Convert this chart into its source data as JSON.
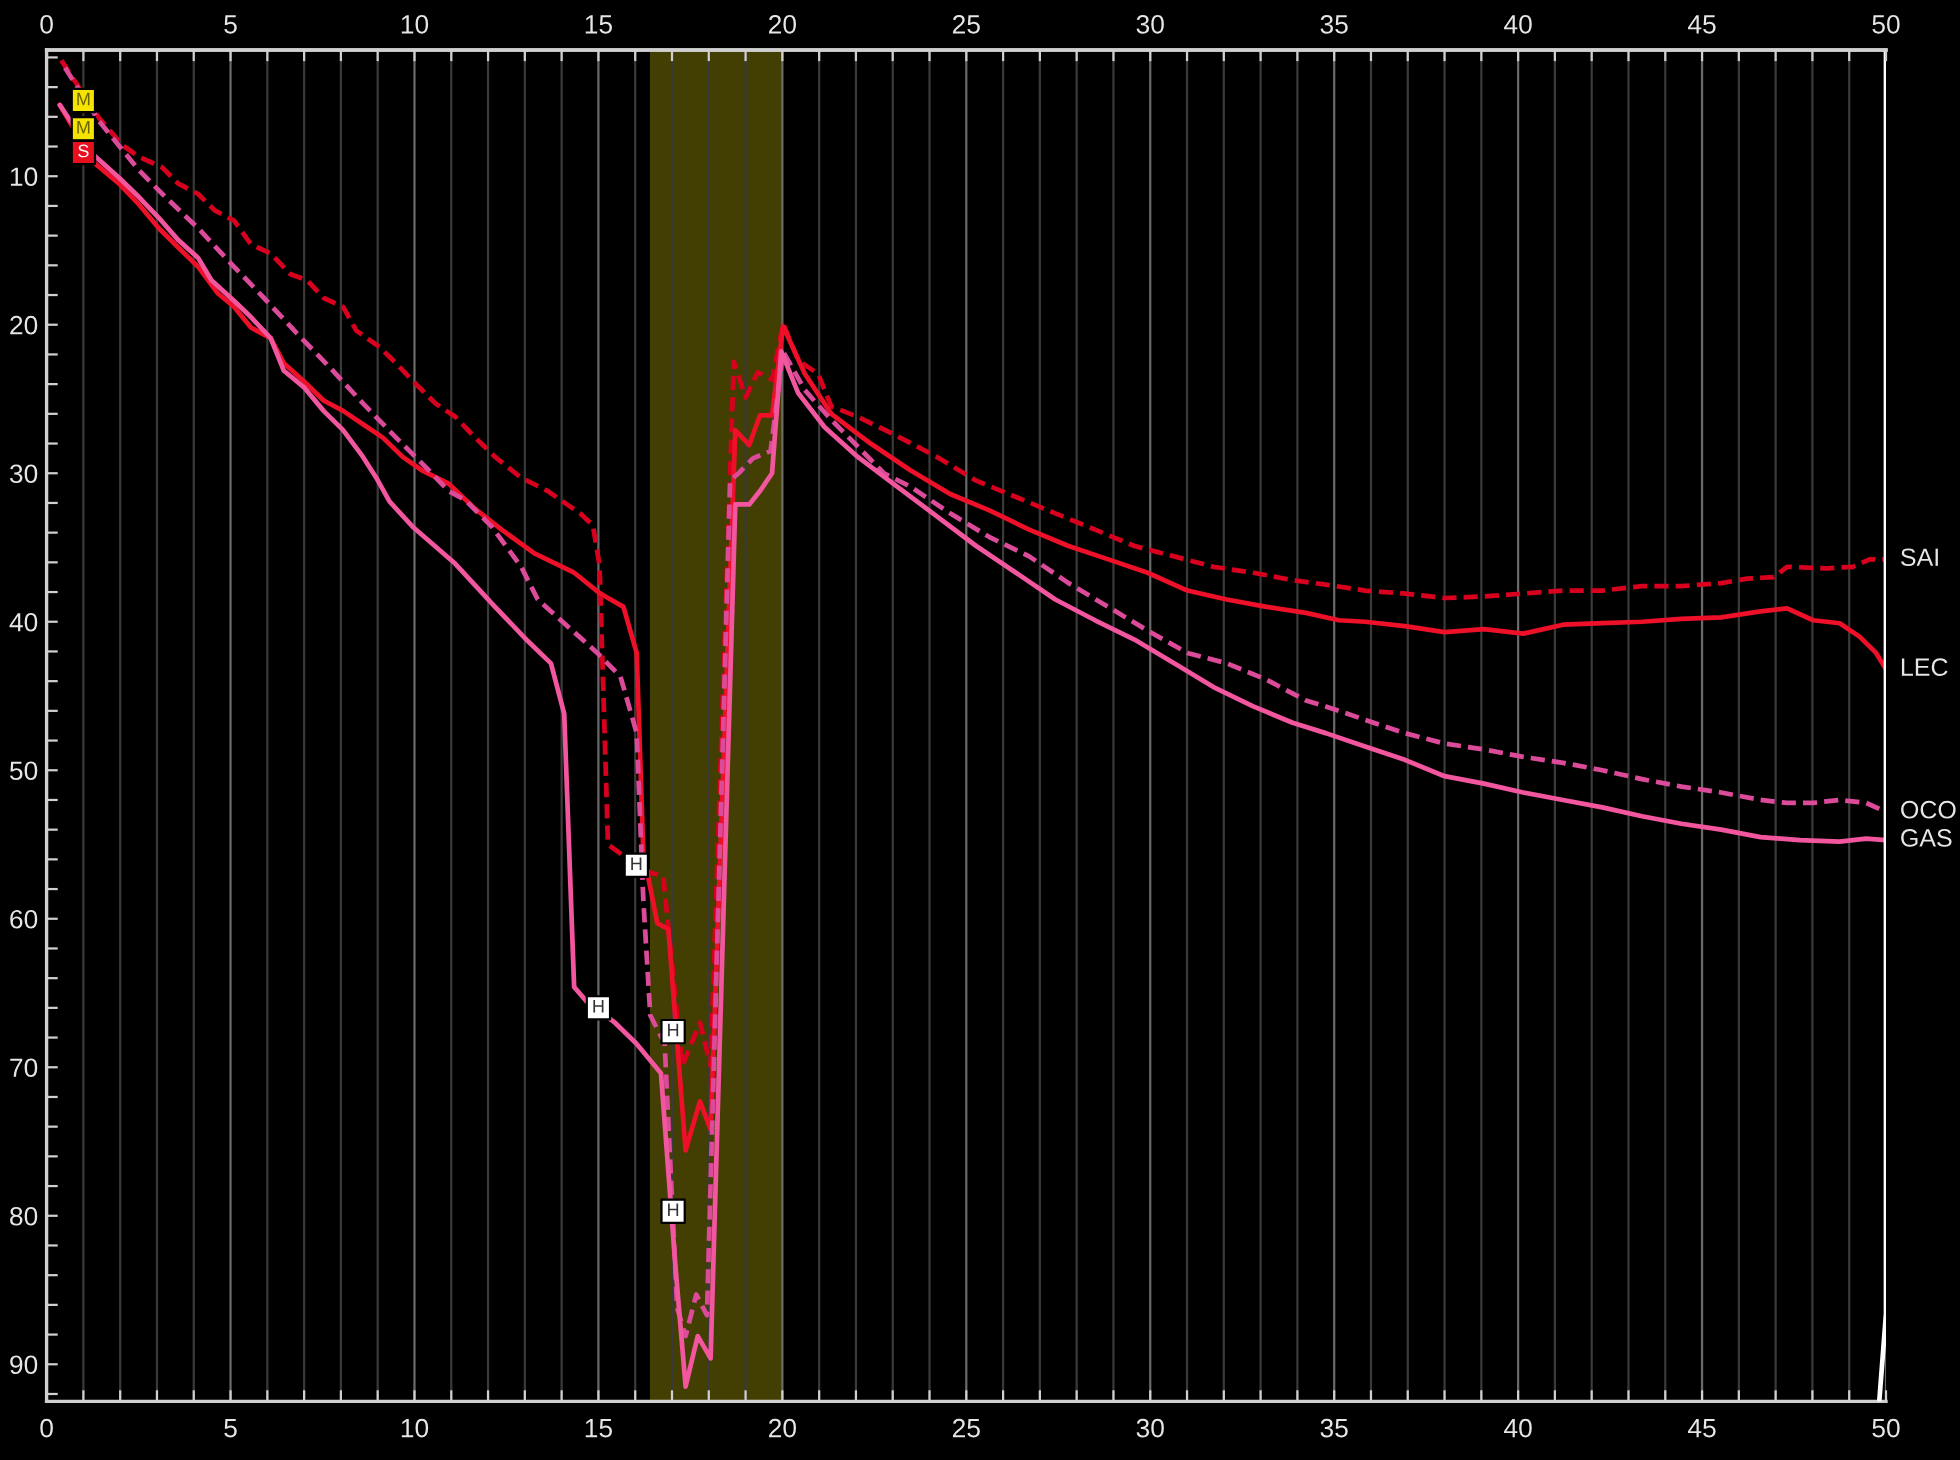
{
  "chart_data": {
    "type": "line",
    "xlim": [
      0,
      50
    ],
    "xticks": [
      0,
      {
        "value": 1,
        "label": null
      },
      {
        "value": 2,
        "label": null
      },
      {
        "value": 3,
        "label": null
      },
      {
        "value": 4,
        "label": null
      },
      5,
      {
        "value": 6,
        "label": null
      },
      {
        "value": 7,
        "label": null
      },
      {
        "value": 8,
        "label": null
      },
      {
        "value": 9,
        "label": null
      },
      10,
      {
        "value": 11,
        "label": null
      },
      {
        "value": 12,
        "label": null
      },
      {
        "value": 13,
        "label": null
      },
      {
        "value": 14,
        "label": null
      },
      15,
      {
        "value": 16,
        "label": null
      },
      {
        "value": 17,
        "label": null
      },
      {
        "value": 18,
        "label": null
      },
      {
        "value": 19,
        "label": null
      },
      20,
      {
        "value": 21,
        "label": null
      },
      {
        "value": 22,
        "label": null
      },
      {
        "value": 23,
        "label": null
      },
      {
        "value": 24,
        "label": null
      },
      25,
      {
        "value": 26,
        "label": null
      },
      {
        "value": 27,
        "label": null
      },
      {
        "value": 28,
        "label": null
      },
      {
        "value": 29,
        "label": null
      },
      30,
      {
        "value": 31,
        "label": null
      },
      {
        "value": 32,
        "label": null
      },
      {
        "value": 33,
        "label": null
      },
      {
        "value": 34,
        "label": null
      },
      35,
      {
        "value": 36,
        "label": null
      },
      {
        "value": 37,
        "label": null
      },
      {
        "value": 38,
        "label": null
      },
      {
        "value": 39,
        "label": null
      },
      40,
      {
        "value": 41,
        "label": null
      },
      {
        "value": 42,
        "label": null
      },
      {
        "value": 43,
        "label": null
      },
      {
        "value": 44,
        "label": null
      },
      45,
      {
        "value": 46,
        "label": null
      },
      {
        "value": 47,
        "label": null
      },
      {
        "value": 48,
        "label": null
      },
      {
        "value": 49,
        "label": null
      },
      50
    ],
    "x2lim": [
      0,
      50
    ],
    "x2ticks": [
      0,
      {
        "value": 1,
        "label": null
      },
      {
        "value": 2,
        "label": null
      },
      {
        "value": 3,
        "label": null
      },
      {
        "value": 4,
        "label": null
      },
      5,
      {
        "value": 6,
        "label": null
      },
      {
        "value": 7,
        "label": null
      },
      {
        "value": 8,
        "label": null
      },
      {
        "value": 9,
        "label": null
      },
      10,
      {
        "value": 11,
        "label": null
      },
      {
        "value": 12,
        "label": null
      },
      {
        "value": 13,
        "label": null
      },
      {
        "value": 14,
        "label": null
      },
      15,
      {
        "value": 16,
        "label": null
      },
      {
        "value": 17,
        "label": null
      },
      {
        "value": 18,
        "label": null
      },
      {
        "value": 19,
        "label": null
      },
      20,
      {
        "value": 21,
        "label": null
      },
      {
        "value": 22,
        "label": null
      },
      {
        "value": 23,
        "label": null
      },
      {
        "value": 24,
        "label": null
      },
      25,
      {
        "value": 26,
        "label": null
      },
      {
        "value": 27,
        "label": null
      },
      {
        "value": 28,
        "label": null
      },
      {
        "value": 29,
        "label": null
      },
      30,
      {
        "value": 31,
        "label": null
      },
      {
        "value": 32,
        "label": null
      },
      {
        "value": 33,
        "label": null
      },
      {
        "value": 34,
        "label": null
      },
      35,
      {
        "value": 36,
        "label": null
      },
      {
        "value": 37,
        "label": null
      },
      {
        "value": 38,
        "label": null
      },
      {
        "value": 39,
        "label": null
      },
      40,
      {
        "value": 41,
        "label": null
      },
      {
        "value": 42,
        "label": null
      },
      {
        "value": 43,
        "label": null
      },
      {
        "value": 44,
        "label": null
      },
      45,
      {
        "value": 46,
        "label": null
      },
      {
        "value": 47,
        "label": null
      },
      {
        "value": 48,
        "label": null
      },
      {
        "value": 49,
        "label": null
      },
      50
    ],
    "ylim": [
      92.5,
      1.5
    ],
    "yticks": [
      {
        "value": 2,
        "label": null
      },
      {
        "value": 4,
        "label": null
      },
      {
        "value": 6,
        "label": null
      },
      {
        "value": 8,
        "label": null
      },
      10,
      {
        "value": 12,
        "label": null
      },
      {
        "value": 14,
        "label": null
      },
      {
        "value": 16,
        "label": null
      },
      {
        "value": 18,
        "label": null
      },
      20,
      {
        "value": 22,
        "label": null
      },
      {
        "value": 24,
        "label": null
      },
      {
        "value": 26,
        "label": null
      },
      {
        "value": 28,
        "label": null
      },
      30,
      {
        "value": 32,
        "label": null
      },
      {
        "value": 34,
        "label": null
      },
      {
        "value": 36,
        "label": null
      },
      {
        "value": 38,
        "label": null
      },
      40,
      {
        "value": 42,
        "label": null
      },
      {
        "value": 44,
        "label": null
      },
      {
        "value": 46,
        "label": null
      },
      {
        "value": 48,
        "label": null
      },
      50,
      {
        "value": 52,
        "label": null
      },
      {
        "value": 54,
        "label": null
      },
      {
        "value": 56,
        "label": null
      },
      {
        "value": 58,
        "label": null
      },
      60,
      {
        "value": 62,
        "label": null
      },
      {
        "value": 64,
        "label": null
      },
      {
        "value": 66,
        "label": null
      },
      {
        "value": 68,
        "label": null
      },
      70,
      {
        "value": 72,
        "label": null
      },
      {
        "value": 74,
        "label": null
      },
      {
        "value": 76,
        "label": null
      },
      {
        "value": 78,
        "label": null
      },
      80,
      {
        "value": 82,
        "label": null
      },
      {
        "value": 84,
        "label": null
      },
      {
        "value": 86,
        "label": null
      },
      {
        "value": 88,
        "label": null
      },
      90,
      {
        "value": 92,
        "label": null
      }
    ],
    "grid": "x",
    "bands": [
      {
        "axis": "x",
        "from": 16.4,
        "to": 20.0,
        "color": "#433f02"
      }
    ],
    "series": [
      {
        "name": "SAI",
        "color": "#d8001e",
        "line_style": "dashed",
        "x": [
          0.4,
          1.43,
          2.06,
          2.51,
          3.14,
          3.58,
          4.12,
          4.57,
          5.1,
          5.56,
          6.09,
          6.63,
          7.08,
          7.53,
          8.06,
          8.42,
          9.05,
          9.5,
          10.04,
          10.57,
          11.11,
          11.65,
          12.19,
          12.9,
          13.62,
          14.5,
          14.85,
          15.03,
          15.26,
          15.65,
          16.41,
          16.76,
          17.28,
          17.76,
          18.05,
          18.68,
          19.0,
          19.33,
          19.72,
          20.02,
          20.43,
          20.97,
          21.33,
          22.05,
          23.12,
          24.2,
          25.27,
          26.35,
          27.42,
          28.5,
          29.57,
          30.65,
          31.72,
          32.8,
          33.87,
          34.77,
          35.84,
          36.92,
          38.0,
          39.07,
          40.14,
          41.22,
          42.29,
          43.37,
          44.44,
          45.52,
          46.23,
          46.95,
          47.31,
          48.38,
          49.1,
          49.55,
          50.0
        ],
        "values": [
          2.2,
          6.1,
          7.9,
          8.7,
          9.4,
          10.5,
          11.2,
          12.3,
          13.0,
          14.6,
          15.2,
          16.6,
          17.0,
          18.2,
          18.8,
          20.4,
          21.5,
          22.6,
          24.0,
          25.3,
          26.2,
          27.6,
          28.9,
          30.3,
          31.2,
          32.7,
          33.5,
          36.2,
          55.0,
          55.7,
          56.9,
          57.1,
          69.9,
          67.0,
          69.9,
          22.5,
          24.9,
          23.2,
          23.7,
          19.9,
          22.4,
          23.3,
          25.5,
          26.2,
          27.5,
          28.9,
          30.5,
          31.6,
          32.7,
          33.8,
          34.9,
          35.6,
          36.3,
          36.7,
          37.2,
          37.5,
          37.9,
          38.1,
          38.4,
          38.3,
          38.1,
          37.9,
          37.9,
          37.6,
          37.6,
          37.4,
          37.1,
          37.0,
          36.3,
          36.4,
          36.3,
          35.8,
          35.8
        ]
      },
      {
        "name": "LEC",
        "color": "#ee1028",
        "line_style": "solid",
        "x": [
          0.36,
          1.25,
          1.97,
          2.51,
          3.05,
          3.58,
          4.12,
          4.66,
          5.1,
          5.56,
          6.09,
          6.45,
          6.99,
          7.53,
          8.06,
          8.6,
          9.14,
          9.68,
          10.2,
          10.93,
          11.65,
          12.37,
          13.26,
          14.34,
          15.05,
          15.68,
          16.04,
          16.22,
          16.6,
          16.9,
          17.37,
          17.76,
          18.05,
          18.72,
          19.1,
          19.39,
          19.72,
          20.02,
          20.61,
          21.33,
          22.4,
          23.48,
          24.56,
          25.63,
          26.71,
          27.78,
          28.86,
          29.93,
          31.01,
          32.08,
          33.16,
          34.23,
          35.13,
          35.84,
          36.92,
          38.0,
          39.07,
          40.14,
          41.22,
          42.29,
          43.37,
          44.44,
          45.52,
          46.59,
          47.31,
          48.02,
          48.74,
          49.28,
          49.73,
          50.0
        ],
        "values": [
          5.2,
          9.0,
          10.5,
          11.9,
          13.5,
          14.8,
          16.1,
          17.9,
          18.8,
          20.2,
          20.9,
          22.6,
          23.8,
          25.1,
          25.8,
          26.7,
          27.6,
          28.9,
          29.8,
          30.7,
          32.4,
          33.8,
          35.4,
          36.7,
          38.1,
          39.0,
          42.1,
          55.5,
          60.3,
          60.7,
          75.6,
          72.3,
          74.2,
          27.1,
          28.1,
          26.1,
          26.1,
          20.1,
          23.3,
          26.0,
          28.0,
          29.8,
          31.4,
          32.5,
          33.8,
          34.9,
          35.8,
          36.7,
          37.9,
          38.5,
          39.0,
          39.4,
          39.9,
          40.0,
          40.3,
          40.7,
          40.5,
          40.8,
          40.2,
          40.1,
          40.0,
          39.8,
          39.7,
          39.3,
          39.1,
          39.9,
          40.1,
          41.0,
          42.1,
          43.2
        ]
      },
      {
        "name": "OCO",
        "color": "#dc4a9a",
        "line_style": "dashed",
        "x": [
          0.5,
          1.43,
          2.51,
          3.23,
          4.12,
          5.02,
          5.91,
          6.81,
          7.71,
          8.6,
          9.5,
          10.39,
          10.93,
          11.38,
          12.1,
          12.9,
          13.35,
          14.16,
          14.97,
          15.6,
          16.04,
          16.22,
          16.41,
          16.8,
          17.14,
          17.37,
          17.66,
          17.95,
          18.58,
          18.81,
          19.2,
          19.68,
          20.02,
          20.61,
          21.33,
          22.05,
          22.76,
          23.48,
          24.56,
          25.63,
          26.71,
          27.78,
          28.86,
          29.93,
          31.01,
          32.08,
          33.16,
          34.23,
          34.77,
          35.84,
          36.92,
          38.0,
          39.07,
          40.14,
          41.22,
          42.29,
          43.37,
          44.44,
          45.52,
          46.59,
          47.31,
          48.02,
          48.74,
          49.46,
          50.0
        ],
        "values": [
          2.7,
          6.3,
          9.6,
          11.4,
          13.5,
          15.9,
          18.2,
          20.6,
          22.9,
          25.3,
          27.6,
          29.8,
          31.2,
          31.8,
          33.6,
          36.3,
          38.5,
          40.3,
          42.1,
          43.7,
          47.5,
          58.7,
          66.5,
          68.4,
          86.2,
          88.1,
          85.3,
          86.7,
          30.5,
          30.0,
          29.0,
          28.5,
          21.8,
          24.4,
          26.4,
          28.2,
          30.0,
          30.9,
          32.7,
          34.3,
          35.6,
          37.4,
          39.0,
          40.6,
          42.1,
          42.8,
          43.9,
          45.3,
          45.7,
          46.6,
          47.5,
          48.2,
          48.6,
          49.1,
          49.5,
          50.0,
          50.6,
          51.1,
          51.5,
          52.0,
          52.2,
          52.2,
          52.0,
          52.2,
          52.8
        ]
      },
      {
        "name": "GAS",
        "color": "#f2569f",
        "line_style": "solid",
        "x": [
          0.36,
          1.25,
          1.97,
          2.51,
          3.05,
          3.58,
          4.12,
          4.48,
          5.1,
          5.56,
          6.09,
          6.45,
          6.99,
          7.53,
          8.06,
          8.6,
          8.96,
          9.32,
          9.95,
          11.11,
          12.19,
          13.08,
          13.71,
          14.07,
          14.34,
          14.69,
          15.45,
          16.03,
          16.7,
          17.09,
          17.37,
          17.7,
          18.05,
          18.72,
          19.1,
          19.39,
          19.72,
          19.97,
          20.43,
          21.15,
          22.05,
          23.12,
          24.2,
          25.27,
          26.35,
          27.42,
          28.5,
          29.57,
          30.65,
          31.72,
          32.8,
          33.87,
          34.77,
          35.84,
          36.92,
          38.0,
          39.07,
          40.14,
          41.22,
          42.29,
          43.37,
          44.44,
          45.52,
          46.59,
          47.66,
          48.74,
          49.46,
          50.0
        ],
        "values": [
          5.2,
          8.5,
          10.1,
          11.4,
          12.8,
          14.3,
          15.5,
          17.0,
          18.4,
          19.5,
          20.9,
          23.1,
          24.2,
          25.8,
          27.1,
          28.9,
          30.3,
          31.9,
          33.6,
          36.1,
          39.0,
          41.3,
          42.8,
          46.2,
          64.6,
          65.6,
          67.0,
          68.4,
          70.4,
          83.3,
          91.5,
          88.1,
          89.6,
          32.1,
          32.1,
          31.2,
          30.0,
          21.8,
          24.6,
          26.9,
          28.9,
          30.9,
          32.9,
          34.9,
          36.7,
          38.5,
          39.9,
          41.2,
          42.8,
          44.4,
          45.7,
          46.8,
          47.5,
          48.4,
          49.3,
          50.4,
          50.9,
          51.5,
          52.0,
          52.5,
          53.1,
          53.6,
          54.0,
          54.5,
          54.7,
          54.8,
          54.6,
          54.7
        ]
      },
      {
        "color": "#ffffff",
        "line_style": "solid",
        "x": [
          49.82,
          50.0,
          50.0
        ],
        "values": [
          92.4,
          86.6,
          1.6
        ]
      },
      {
        "type": "scatter",
        "marker": "square",
        "x": [
          1,
          1,
          1,
          15.0,
          16.03,
          17.03,
          17.03
        ],
        "values": [
          4.9,
          6.8,
          8.4,
          66.0,
          56.4,
          67.6,
          79.7
        ],
        "colors": [
          "#f5e400",
          "#f5e400",
          "#e8101e",
          "#ffffff",
          "#ffffff",
          "#ffffff",
          "#ffffff"
        ],
        "value_labels": [
          "M",
          "M",
          "S",
          "H",
          "H",
          "H",
          "H"
        ]
      }
    ]
  }
}
